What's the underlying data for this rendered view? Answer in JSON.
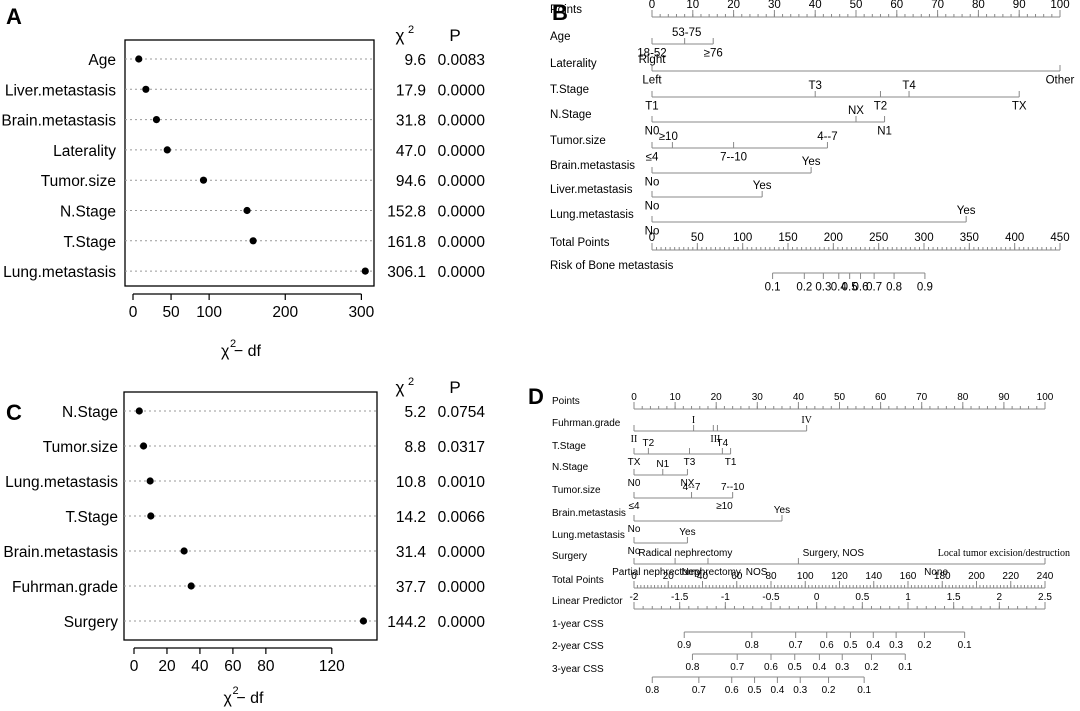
{
  "chart_data": [
    {
      "panel": "A",
      "type": "scatter",
      "xlabel": "χ² − df",
      "xlim": [
        0,
        310
      ],
      "xticks": [
        0,
        50,
        100,
        200,
        300
      ],
      "stat_header": "χ²",
      "p_header": "P",
      "rows": [
        {
          "label": "Age",
          "x": 7.6,
          "chi2": "9.6",
          "p": "0.0083"
        },
        {
          "label": "Liver.metastasis",
          "x": 16.9,
          "chi2": "17.9",
          "p": "0.0000"
        },
        {
          "label": "Brain.metastasis",
          "x": 30.8,
          "chi2": "31.8",
          "p": "0.0000"
        },
        {
          "label": "Laterality",
          "x": 45.0,
          "chi2": "47.0",
          "p": "0.0000"
        },
        {
          "label": "Tumor.size",
          "x": 92.6,
          "chi2": "94.6",
          "p": "0.0000"
        },
        {
          "label": "N.Stage",
          "x": 149.8,
          "chi2": "152.8",
          "p": "0.0000"
        },
        {
          "label": "T.Stage",
          "x": 157.8,
          "chi2": "161.8",
          "p": "0.0000"
        },
        {
          "label": "Lung.metastasis",
          "x": 305.1,
          "chi2": "306.1",
          "p": "0.0000"
        }
      ]
    },
    {
      "panel": "B",
      "type": "nomogram",
      "rows": [
        {
          "label": "Points",
          "kind": "axis",
          "range": [
            0,
            100
          ],
          "ticks": [
            0,
            10,
            20,
            30,
            40,
            50,
            60,
            70,
            80,
            90,
            100
          ],
          "minor": 5
        },
        {
          "label": "Age",
          "kind": "var",
          "span": [
            0,
            15
          ],
          "marks": [
            0,
            8,
            15
          ],
          "labels": [
            {
              "t": "53-75",
              "v": 8.5,
              "pos": "above"
            },
            {
              "t": "18-52",
              "v": 0,
              "pos": "below"
            },
            {
              "t": "≥76",
              "v": 15,
              "pos": "below"
            }
          ]
        },
        {
          "label": "Laterality",
          "kind": "var",
          "span": [
            0,
            100
          ],
          "marks": [
            0,
            100
          ],
          "labels": [
            {
              "t": "Right",
              "v": 0,
              "pos": "above"
            },
            {
              "t": "Left",
              "v": 0,
              "pos": "below"
            },
            {
              "t": "Other",
              "v": 100,
              "pos": "below"
            }
          ]
        },
        {
          "label": "T.Stage",
          "kind": "var",
          "span": [
            0,
            90
          ],
          "marks": [
            0,
            40,
            56,
            63,
            90
          ],
          "labels": [
            {
              "t": "T3",
              "v": 40,
              "pos": "above"
            },
            {
              "t": "T4",
              "v": 63,
              "pos": "above"
            },
            {
              "t": "T1",
              "v": 0,
              "pos": "below"
            },
            {
              "t": "T2",
              "v": 56,
              "pos": "below"
            },
            {
              "t": "TX",
              "v": 90,
              "pos": "below"
            }
          ]
        },
        {
          "label": "N.Stage",
          "kind": "var",
          "span": [
            0,
            57
          ],
          "marks": [
            0,
            50,
            57
          ],
          "labels": [
            {
              "t": "NX",
              "v": 50,
              "pos": "above"
            },
            {
              "t": "N0",
              "v": 0,
              "pos": "below"
            },
            {
              "t": "N1",
              "v": 57,
              "pos": "below"
            }
          ]
        },
        {
          "label": "Tumor.size",
          "kind": "var",
          "span": [
            0,
            43
          ],
          "marks": [
            0,
            5,
            20,
            43
          ],
          "labels": [
            {
              "t": "≥10",
              "v": 4,
              "pos": "above"
            },
            {
              "t": "4--7",
              "v": 43,
              "pos": "above"
            },
            {
              "t": "≤4",
              "v": 0,
              "pos": "below"
            },
            {
              "t": "7--10",
              "v": 20,
              "pos": "below"
            }
          ]
        },
        {
          "label": "Brain.metastasis",
          "kind": "var",
          "span": [
            0,
            39
          ],
          "marks": [
            0,
            39
          ],
          "labels": [
            {
              "t": "Yes",
              "v": 39,
              "pos": "above"
            },
            {
              "t": "No",
              "v": 0,
              "pos": "below"
            }
          ]
        },
        {
          "label": "Liver.metastasis",
          "kind": "var",
          "span": [
            0,
            27
          ],
          "marks": [
            0,
            27
          ],
          "labels": [
            {
              "t": "Yes",
              "v": 27,
              "pos": "above"
            },
            {
              "t": "No",
              "v": 0,
              "pos": "below"
            }
          ]
        },
        {
          "label": "Lung.metastasis",
          "kind": "var",
          "span": [
            0,
            77
          ],
          "marks": [
            0,
            77
          ],
          "labels": [
            {
              "t": "Yes",
              "v": 77,
              "pos": "above"
            },
            {
              "t": "No",
              "v": 0,
              "pos": "below"
            }
          ]
        },
        {
          "label": "Total Points",
          "kind": "axis",
          "range": [
            0,
            450
          ],
          "ticks": [
            0,
            50,
            100,
            150,
            200,
            250,
            300,
            350,
            400,
            450
          ],
          "minor": 10
        },
        {
          "label": "Risk of Bone metastasis",
          "kind": "risk",
          "ticks": [
            {
              "t": "0.1",
              "v": 133
            },
            {
              "t": "0.2",
              "v": 168
            },
            {
              "t": "0.3",
              "v": 189
            },
            {
              "t": "0.4",
              "v": 206
            },
            {
              "t": "0.5",
              "v": 218
            },
            {
              "t": "0.6",
              "v": 230
            },
            {
              "t": "0.7",
              "v": 245
            },
            {
              "t": "0.8",
              "v": 267
            },
            {
              "t": "0.9",
              "v": 301
            }
          ]
        }
      ]
    },
    {
      "panel": "C",
      "type": "scatter",
      "xlabel": "χ² − df",
      "xlim": [
        0,
        145
      ],
      "xticks": [
        0,
        20,
        40,
        60,
        80,
        120
      ],
      "stat_header": "χ²",
      "p_header": "P",
      "rows": [
        {
          "label": "N.Stage",
          "x": 3.2,
          "chi2": "5.2",
          "p": "0.0754"
        },
        {
          "label": "Tumor.size",
          "x": 5.8,
          "chi2": "8.8",
          "p": "0.0317"
        },
        {
          "label": "Lung.metastasis",
          "x": 9.8,
          "chi2": "10.8",
          "p": "0.0010"
        },
        {
          "label": "T.Stage",
          "x": 10.2,
          "chi2": "14.2",
          "p": "0.0066"
        },
        {
          "label": "Brain.metastasis",
          "x": 30.4,
          "chi2": "31.4",
          "p": "0.0000"
        },
        {
          "label": "Fuhrman.grade",
          "x": 34.7,
          "chi2": "37.7",
          "p": "0.0000"
        },
        {
          "label": "Surgery",
          "x": 139.2,
          "chi2": "144.2",
          "p": "0.0000"
        }
      ]
    },
    {
      "panel": "D",
      "type": "nomogram",
      "rows": [
        {
          "label": "Points",
          "kind": "axis",
          "range": [
            0,
            100
          ],
          "ticks": [
            0,
            10,
            20,
            30,
            40,
            50,
            60,
            70,
            80,
            90,
            100
          ],
          "minor": 5
        },
        {
          "label": "Fuhrman.grade",
          "kind": "var",
          "span": [
            0,
            42
          ],
          "marks": [
            0,
            14.5,
            19.3,
            20.3,
            42
          ],
          "labels": [
            {
              "t": "I",
              "v": 14.5,
              "pos": "above",
              "serif": true
            },
            {
              "t": "IV",
              "v": 42,
              "pos": "above",
              "serif": true
            },
            {
              "t": "II",
              "v": 0,
              "pos": "below",
              "serif": true
            },
            {
              "t": "III",
              "v": 19.8,
              "pos": "below",
              "serif": true
            }
          ]
        },
        {
          "label": "T.Stage",
          "kind": "var",
          "span": [
            0,
            23.5
          ],
          "marks": [
            0,
            3.5,
            13.5,
            21.5,
            23.5
          ],
          "labels": [
            {
              "t": "T2",
              "v": 3.5,
              "pos": "above"
            },
            {
              "t": "T4",
              "v": 21.5,
              "pos": "above"
            },
            {
              "t": "TX",
              "v": 0,
              "pos": "below"
            },
            {
              "t": "T3",
              "v": 13.5,
              "pos": "below"
            },
            {
              "t": "T1",
              "v": 23.5,
              "pos": "below"
            }
          ]
        },
        {
          "label": "N.Stage",
          "kind": "var",
          "span": [
            0,
            13
          ],
          "marks": [
            0,
            7,
            13
          ],
          "labels": [
            {
              "t": "N1",
              "v": 7,
              "pos": "above"
            },
            {
              "t": "N0",
              "v": 0,
              "pos": "below"
            },
            {
              "t": "NX",
              "v": 13,
              "pos": "below"
            }
          ]
        },
        {
          "label": "Tumor.size",
          "kind": "var",
          "span": [
            0,
            24
          ],
          "marks": [
            0,
            14,
            24
          ],
          "labels": [
            {
              "t": "4--7",
              "v": 14,
              "pos": "above"
            },
            {
              "t": "7--10",
              "v": 24,
              "pos": "above"
            },
            {
              "t": "≤4",
              "v": 0,
              "pos": "below"
            },
            {
              "t": "≥10",
              "v": 22,
              "pos": "below"
            }
          ]
        },
        {
          "label": "Brain.metastasis",
          "kind": "var",
          "span": [
            0,
            36
          ],
          "marks": [
            0,
            36
          ],
          "labels": [
            {
              "t": "Yes",
              "v": 36,
              "pos": "above"
            },
            {
              "t": "No",
              "v": 0,
              "pos": "below"
            }
          ]
        },
        {
          "label": "Lung.metastasis",
          "kind": "var",
          "span": [
            0,
            13
          ],
          "marks": [
            0,
            13
          ],
          "labels": [
            {
              "t": "Yes",
              "v": 13,
              "pos": "above"
            },
            {
              "t": "No",
              "v": 0,
              "pos": "below"
            }
          ]
        },
        {
          "label": "Surgery",
          "kind": "var",
          "span": [
            0,
            100
          ],
          "marks": [
            0,
            10,
            18,
            40,
            100
          ],
          "labels": [
            {
              "t": "Radical nephrectomy",
              "v": 12.5,
              "pos": "above"
            },
            {
              "t": "Surgery, NOS",
              "v": 48.5,
              "pos": "above"
            },
            {
              "t": "Local tumor excision/destruction",
              "v": 90,
              "pos": "above",
              "serif": true
            },
            {
              "t": "Partial nephrectomy",
              "v": 5.5,
              "pos": "below"
            },
            {
              "t": "Nephrectomy, NOS",
              "v": 22,
              "pos": "below"
            },
            {
              "t": "None",
              "v": 73.5,
              "pos": "below"
            }
          ]
        },
        {
          "label": "Total Points",
          "kind": "axis",
          "range": [
            0,
            240
          ],
          "ticks": [
            0,
            20,
            40,
            60,
            80,
            100,
            120,
            140,
            160,
            180,
            200,
            220,
            240
          ],
          "minor": 10
        },
        {
          "label": "Linear Predictor",
          "kind": "axis",
          "range": [
            -2,
            2.5
          ],
          "ticks": [
            -2,
            -1.5,
            -1,
            -0.5,
            0,
            0.5,
            1,
            1.5,
            2,
            2.5
          ],
          "minor": 5,
          "ticklabels": [
            "-2",
            "-1.5",
            "-1",
            "-0.5",
            "0",
            "0.5",
            "1",
            "1.5",
            "2",
            "2.5"
          ]
        },
        {
          "label": "1-year CSS",
          "kind": "risk",
          "ticks": [
            {
              "t": "0.9",
              "v": -1.45
            },
            {
              "t": "0.8",
              "v": -0.71
            },
            {
              "t": "0.7",
              "v": -0.23
            },
            {
              "t": "0.6",
              "v": 0.11
            },
            {
              "t": "0.5",
              "v": 0.37
            },
            {
              "t": "0.4",
              "v": 0.62
            },
            {
              "t": "0.3",
              "v": 0.87
            },
            {
              "t": "0.2",
              "v": 1.18
            },
            {
              "t": "0.1",
              "v": 1.62
            }
          ]
        },
        {
          "label": "2-year CSS",
          "kind": "risk",
          "ticks": [
            {
              "t": "0.8",
              "v": -1.36
            },
            {
              "t": "0.7",
              "v": -0.87
            },
            {
              "t": "0.6",
              "v": -0.5
            },
            {
              "t": "0.5",
              "v": -0.24
            },
            {
              "t": "0.4",
              "v": 0.03
            },
            {
              "t": "0.3",
              "v": 0.28
            },
            {
              "t": "0.2",
              "v": 0.6
            },
            {
              "t": "0.1",
              "v": 0.97
            }
          ]
        },
        {
          "label": "3-year CSS",
          "kind": "risk",
          "ticks": [
            {
              "t": "0.8",
              "v": -1.8
            },
            {
              "t": "0.7",
              "v": -1.29
            },
            {
              "t": "0.6",
              "v": -0.93
            },
            {
              "t": "0.5",
              "v": -0.68
            },
            {
              "t": "0.4",
              "v": -0.43
            },
            {
              "t": "0.3",
              "v": -0.18
            },
            {
              "t": "0.2",
              "v": 0.13
            },
            {
              "t": "0.1",
              "v": 0.52
            }
          ]
        }
      ]
    }
  ],
  "panel_letters": [
    "A",
    "B",
    "C",
    "D"
  ]
}
